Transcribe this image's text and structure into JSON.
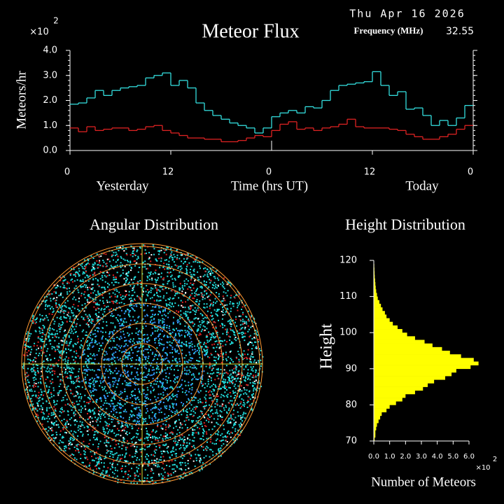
{
  "header": {
    "date": "Thu Apr 16 2026",
    "frequency_label": "Frequency (MHz)",
    "frequency": "32.55"
  },
  "chart_data": [
    {
      "type": "line",
      "title": "Meteor Flux",
      "y_label": "Meteors/hr",
      "x_label": "Time (hrs UT)",
      "x_left_label": "Yesterday",
      "x_right_label": "Today",
      "y_multiplier": "×10",
      "y_multiplier_exp": "2",
      "x": [
        0,
        1,
        2,
        3,
        4,
        5,
        6,
        7,
        8,
        9,
        10,
        11,
        12,
        13,
        14,
        15,
        16,
        17,
        18,
        19,
        20,
        21,
        22,
        23,
        24,
        25,
        26,
        27,
        28,
        29,
        30,
        31,
        32,
        33,
        34,
        35,
        36,
        37,
        38,
        39,
        40,
        41,
        42,
        43,
        44,
        45,
        46,
        47
      ],
      "xlim": [
        0,
        48
      ],
      "xticks": [
        0,
        12,
        {
          "value": 24,
          "label": "0"
        },
        {
          "value": 36,
          "label": "12"
        },
        {
          "value": 48,
          "label": "0"
        }
      ],
      "ylim": [
        0,
        4
      ],
      "yticks": [
        {
          "value": 0,
          "label": "0.0"
        },
        {
          "value": 1,
          "label": "1.0"
        },
        {
          "value": 2,
          "label": "2.0"
        },
        {
          "value": 3,
          "label": "3.0"
        },
        {
          "value": 4,
          "label": "4.0"
        }
      ],
      "series": [
        {
          "color": "#33dddd",
          "values": [
            1.85,
            1.9,
            2.1,
            2.4,
            2.2,
            2.4,
            2.5,
            2.55,
            2.6,
            2.9,
            3.0,
            3.1,
            2.6,
            2.8,
            2.5,
            1.9,
            1.6,
            1.4,
            1.25,
            1.1,
            1.0,
            0.9,
            0.7,
            0.9,
            1.35,
            1.5,
            1.6,
            1.5,
            1.75,
            1.7,
            2.0,
            2.4,
            2.6,
            2.65,
            2.7,
            2.75,
            3.15,
            2.6,
            2.2,
            2.35,
            1.65,
            1.7,
            1.4,
            1.0,
            1.2,
            1.0,
            1.3,
            1.8
          ]
        },
        {
          "color": "#dd2222",
          "values": [
            0.9,
            0.75,
            0.95,
            0.8,
            0.85,
            0.9,
            0.9,
            0.8,
            0.85,
            0.95,
            1.0,
            0.8,
            0.7,
            0.6,
            0.5,
            0.5,
            0.45,
            0.45,
            0.35,
            0.35,
            0.4,
            0.5,
            0.6,
            0.55,
            0.8,
            1.05,
            1.15,
            0.85,
            0.9,
            0.8,
            0.9,
            0.95,
            1.05,
            1.25,
            0.95,
            0.9,
            0.9,
            0.9,
            0.85,
            0.8,
            0.65,
            0.55,
            0.45,
            0.45,
            0.55,
            0.65,
            0.85,
            1.0
          ]
        }
      ]
    },
    {
      "type": "polar",
      "title": "Angular Distribution"
    },
    {
      "type": "histogram",
      "title": "Height Distribution",
      "y_label": "Height",
      "x_label": "Number of Meteors",
      "x_multiplier": "×10",
      "x_multiplier_exp": "2",
      "color": "#ffff00",
      "bins": [
        70,
        71,
        72,
        73,
        74,
        75,
        76,
        77,
        78,
        79,
        80,
        81,
        82,
        83,
        84,
        85,
        86,
        87,
        88,
        89,
        90,
        91,
        92,
        93,
        94,
        95,
        96,
        97,
        98,
        99,
        100,
        101,
        102,
        103,
        104,
        105,
        106,
        107,
        108,
        109,
        110,
        111,
        112,
        113,
        114,
        115,
        116,
        117,
        118,
        119,
        120
      ],
      "counts": [
        0.05,
        0.1,
        0.1,
        0.15,
        0.2,
        0.3,
        0.4,
        0.5,
        0.8,
        1.0,
        1.4,
        1.8,
        2.0,
        2.6,
        3.1,
        3.4,
        3.8,
        4.5,
        4.9,
        5.2,
        6.1,
        6.6,
        6.3,
        5.5,
        4.8,
        4.3,
        3.7,
        3.2,
        2.6,
        2.1,
        1.8,
        1.5,
        1.2,
        1.0,
        0.8,
        0.7,
        0.55,
        0.45,
        0.35,
        0.25,
        0.2,
        0.15,
        0.12,
        0.1,
        0.08,
        0.06,
        0.05,
        0.04,
        0.03,
        0.02
      ],
      "xlim": [
        0,
        6
      ],
      "xticks": [
        {
          "value": 0,
          "label": "0.0"
        },
        {
          "value": 1,
          "label": "1.0"
        },
        {
          "value": 2,
          "label": "2.0"
        },
        {
          "value": 3,
          "label": "3.0"
        },
        {
          "value": 4,
          "label": "4.0"
        },
        {
          "value": 5,
          "label": "5.0"
        },
        {
          "value": 6,
          "label": "6.0"
        }
      ],
      "ylim": [
        70,
        120
      ],
      "yticks": [
        70,
        80,
        90,
        100,
        110,
        120
      ]
    }
  ]
}
